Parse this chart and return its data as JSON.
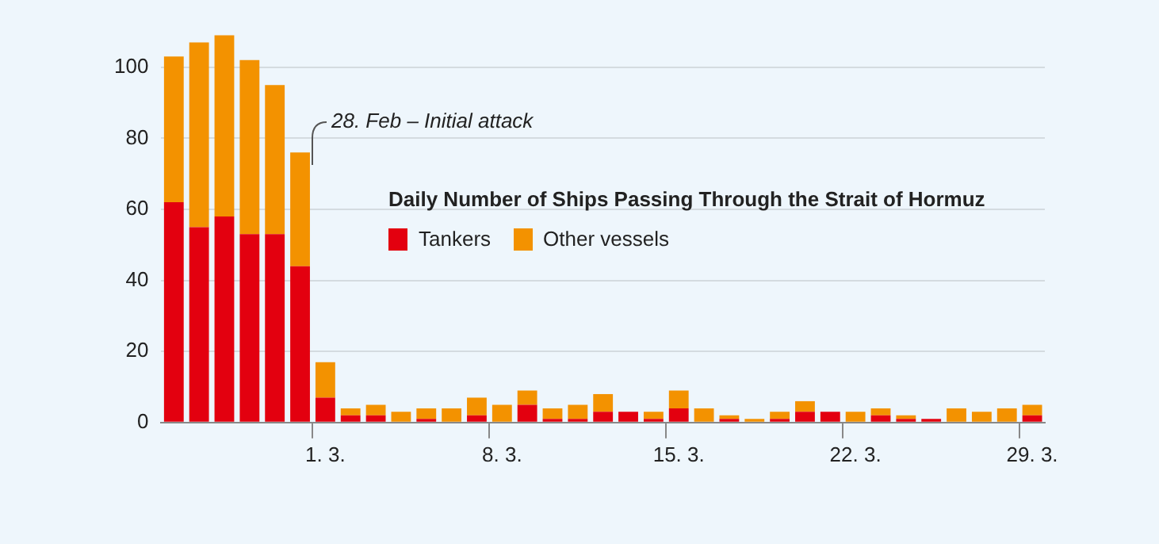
{
  "chart_data": {
    "type": "bar",
    "title": "Daily Number of Ships Passing Through the Strait of Hormuz",
    "categories": [
      null,
      null,
      null,
      null,
      null,
      null,
      "1. 3.",
      null,
      null,
      null,
      null,
      null,
      null,
      "8. 3.",
      null,
      null,
      null,
      null,
      null,
      null,
      "15. 3.",
      null,
      null,
      null,
      null,
      null,
      null,
      "22. 3.",
      null,
      null,
      null,
      null,
      null,
      null,
      "29. 3."
    ],
    "series": [
      {
        "name": "Tankers",
        "color": "#e3000f",
        "values": [
          62,
          55,
          58,
          53,
          53,
          44,
          7,
          2,
          2,
          0,
          1,
          0,
          2,
          0,
          5,
          1,
          1,
          3,
          3,
          1,
          4,
          0,
          1,
          0,
          1,
          3,
          3,
          0,
          2,
          1,
          1,
          0,
          0,
          0,
          2
        ]
      },
      {
        "name": "Other vessels",
        "color": "#f39200",
        "values": [
          41,
          52,
          51,
          49,
          42,
          32,
          10,
          2,
          3,
          3,
          3,
          4,
          5,
          5,
          4,
          3,
          4,
          5,
          0,
          2,
          5,
          4,
          1,
          1,
          2,
          3,
          0,
          3,
          2,
          1,
          0,
          4,
          3,
          4,
          3
        ]
      }
    ],
    "stacked": true,
    "ylim": [
      0,
      110
    ],
    "yticks": [
      0,
      20,
      40,
      60,
      80,
      100
    ],
    "grid": "y",
    "legend": "left",
    "annotations": [
      "28. Feb – Initial attack"
    ]
  }
}
